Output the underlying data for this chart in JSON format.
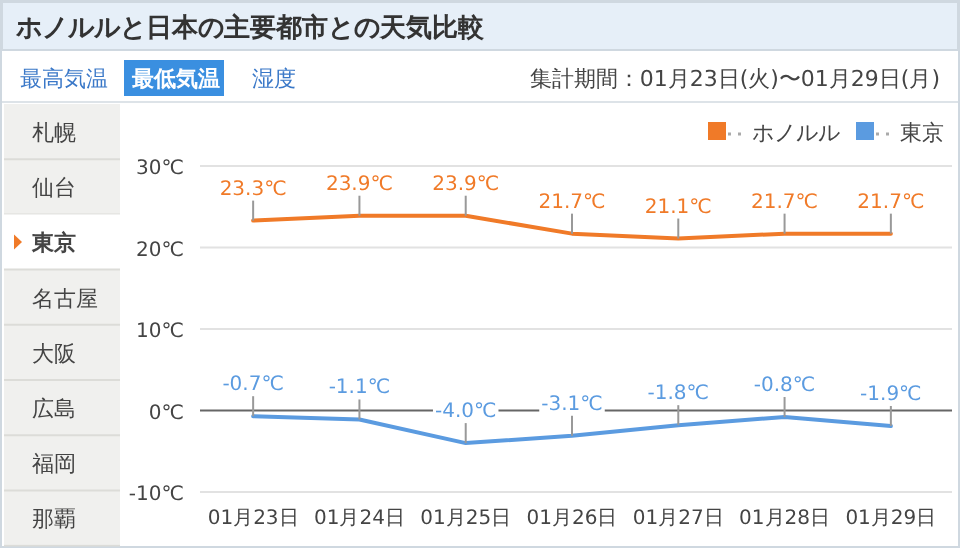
{
  "chart_data": {
    "type": "line",
    "title": "ホノルルと日本の主要都市との天気比較",
    "subtitle": "集計期間：01月23日(火)〜01月29日(月)",
    "annotations": [
      "最高気温",
      "最低気温",
      "湿度",
      "札幌",
      "仙台",
      "東京",
      "名古屋",
      "大阪",
      "広島",
      "福岡",
      "那覇"
    ],
    "categories": [
      "01月23日",
      "01月24日",
      "01月25日",
      "01月26日",
      "01月27日",
      "01月28日",
      "01月29日"
    ],
    "series": [
      {
        "name": "ホノルル",
        "color": "#f07a28",
        "values": [
          23.3,
          23.9,
          23.9,
          21.7,
          21.1,
          21.7,
          21.7
        ],
        "value_labels": [
          "23.3℃",
          "23.9℃",
          "23.9℃",
          "21.7℃",
          "21.1℃",
          "21.7℃",
          "21.7℃"
        ]
      },
      {
        "name": "東京",
        "color": "#5b9be0",
        "values": [
          -0.7,
          -1.1,
          -4.0,
          -3.1,
          -1.8,
          -0.8,
          -1.9
        ],
        "value_labels": [
          "-0.7℃",
          "-1.1℃",
          "-4.0℃",
          "-3.1℃",
          "-1.8℃",
          "-0.8℃",
          "-1.9℃"
        ]
      }
    ],
    "ylim": [
      -10,
      30
    ],
    "yticks": [
      {
        "value": -10,
        "label": "-10℃"
      },
      {
        "value": 0,
        "label": "0℃"
      },
      {
        "value": 10,
        "label": "10℃"
      },
      {
        "value": 20,
        "label": "20℃"
      },
      {
        "value": 30,
        "label": "30℃"
      }
    ],
    "grid": "y",
    "legend": "top right",
    "marker": "none",
    "line_style": "solid"
  }
}
